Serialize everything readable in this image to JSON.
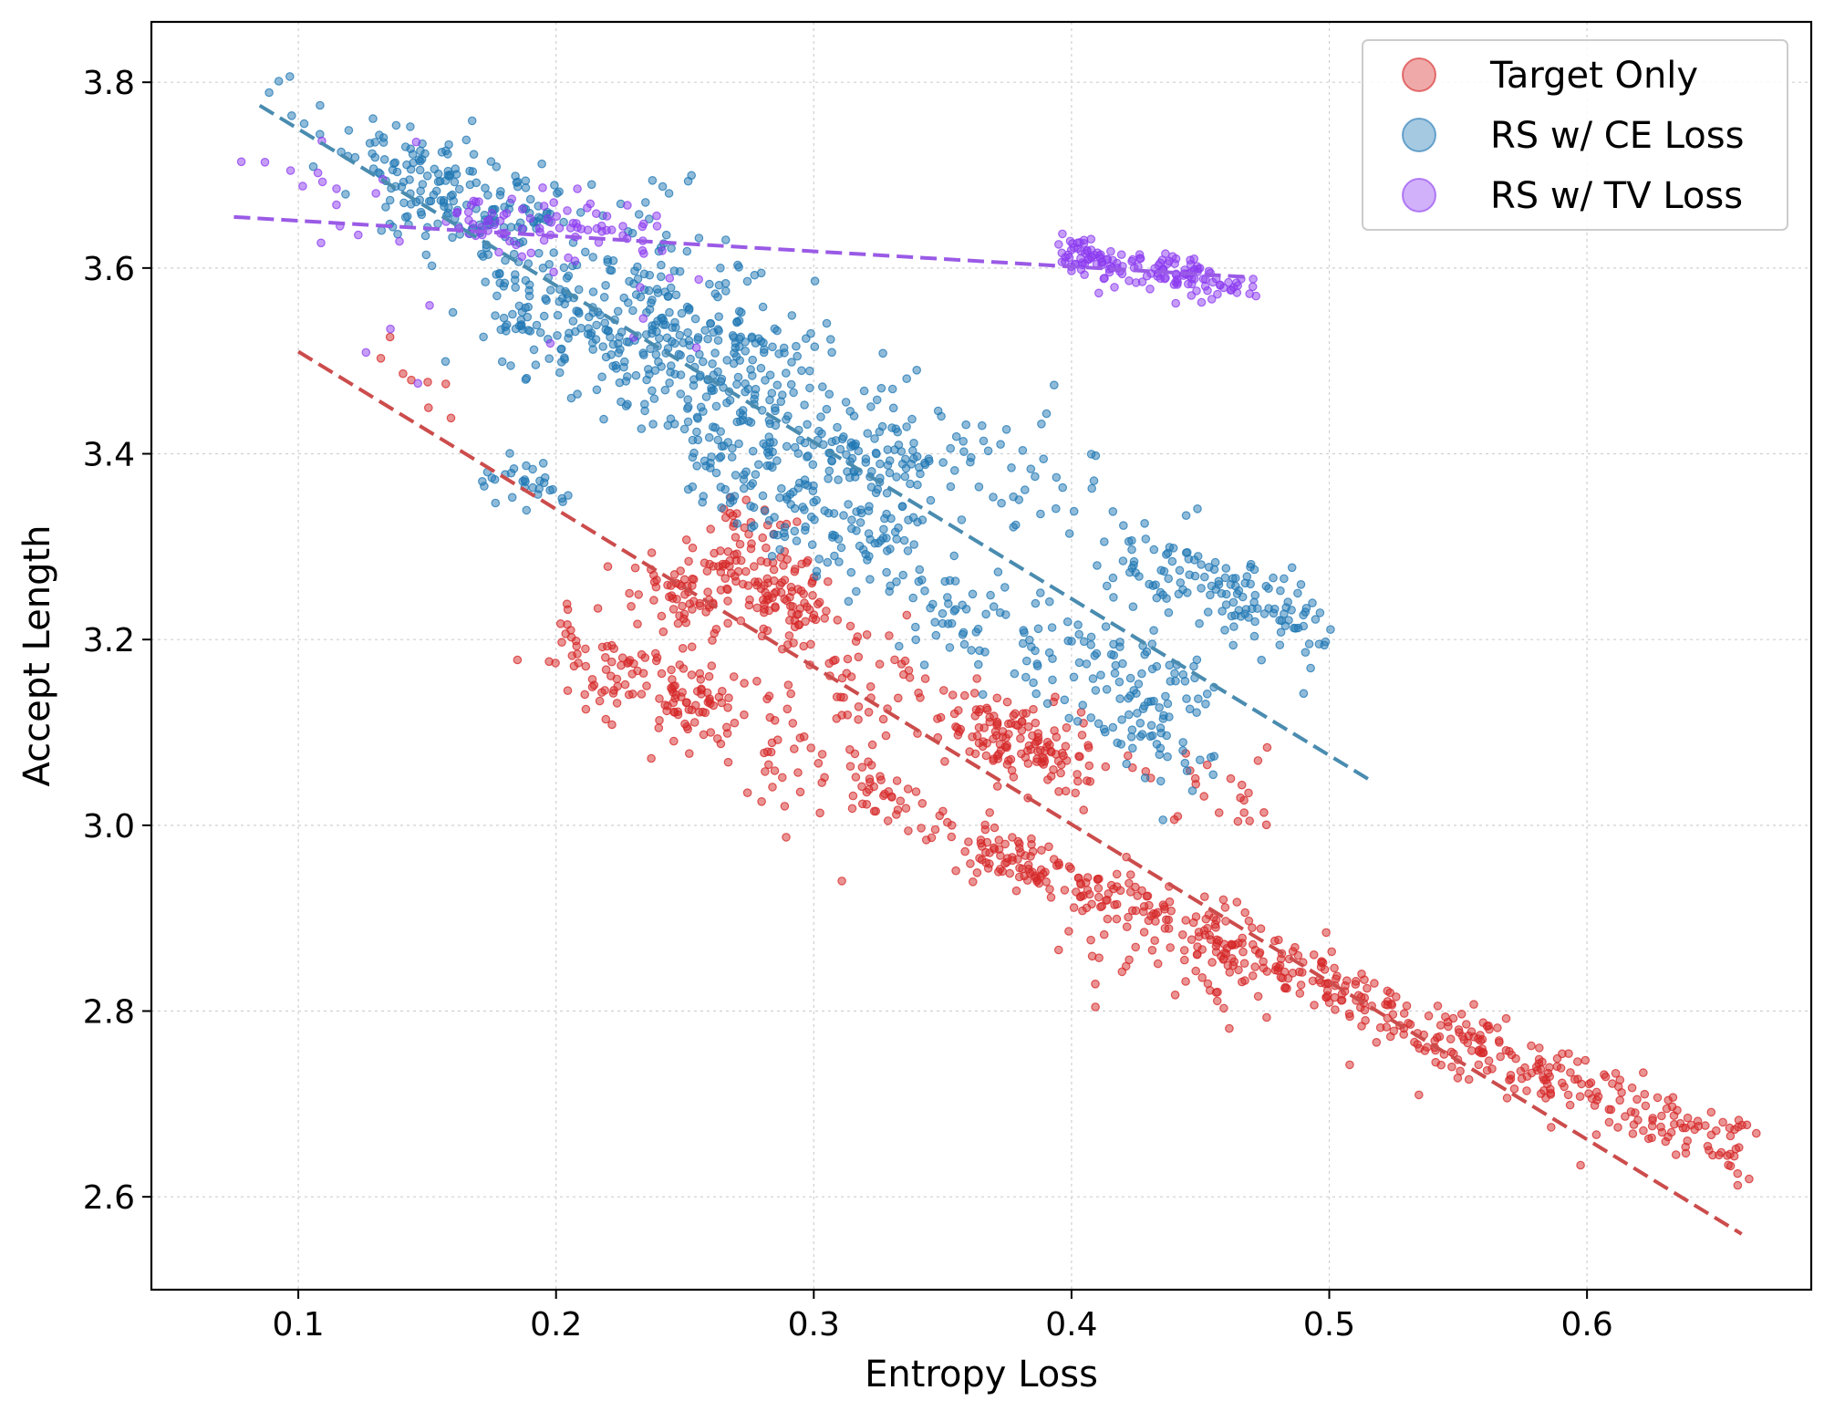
{
  "chart_data": {
    "type": "scatter",
    "title": "",
    "xlabel": "Entropy Loss",
    "ylabel": "Accept Length",
    "xlim": [
      0.043,
      0.687
    ],
    "ylim": [
      2.5,
      3.865
    ],
    "xticks": [
      "0.1",
      "0.2",
      "0.3",
      "0.4",
      "0.5",
      "0.6"
    ],
    "yticks": [
      "2.6",
      "2.8",
      "3.0",
      "3.2",
      "3.4",
      "3.6",
      "3.8"
    ],
    "grid": true,
    "legend_position": "top-right",
    "series": [
      {
        "name": "Target Only",
        "color": "#d62728",
        "trend_line": {
          "x": [
            0.1,
            0.66
          ],
          "y": [
            3.51,
            2.56
          ]
        },
        "clusters": [
          {
            "x": [
              0.52,
              0.66
            ],
            "y": [
              2.8,
              2.65
            ],
            "n": 230,
            "spread": 0.018
          },
          {
            "x": [
              0.44,
              0.52
            ],
            "y": [
              2.9,
              2.8
            ],
            "n": 140,
            "spread": 0.018
          },
          {
            "x": [
              0.36,
              0.44
            ],
            "y": [
              2.98,
              2.9
            ],
            "n": 120,
            "spread": 0.018
          },
          {
            "x": [
              0.32,
              0.38
            ],
            "y": [
              3.05,
              2.95
            ],
            "n": 60,
            "spread": 0.015
          },
          {
            "x": [
              0.4,
              0.48
            ],
            "y": [
              2.88,
              2.82
            ],
            "n": 45,
            "spread": 0.025
          },
          {
            "x": [
              0.26,
              0.3
            ],
            "y": [
              3.3,
              3.23
            ],
            "n": 150,
            "spread": 0.03
          },
          {
            "x": [
              0.3,
              0.41
            ],
            "y": [
              3.2,
              3.06
            ],
            "n": 110,
            "spread": 0.03
          },
          {
            "x": [
              0.36,
              0.4
            ],
            "y": [
              3.1,
              3.07
            ],
            "n": 70,
            "spread": 0.02
          },
          {
            "x": [
              0.24,
              0.32
            ],
            "y": [
              3.15,
              3.05
            ],
            "n": 90,
            "spread": 0.04
          },
          {
            "x": [
              0.2,
              0.23
            ],
            "y": [
              3.21,
              3.14
            ],
            "n": 60,
            "spread": 0.025
          },
          {
            "x": [
              0.23,
              0.26
            ],
            "y": [
              3.26,
              3.24
            ],
            "n": 45,
            "spread": 0.015
          },
          {
            "x": [
              0.24,
              0.26
            ],
            "y": [
              3.15,
              3.12
            ],
            "n": 40,
            "spread": 0.02
          },
          {
            "x": [
              0.42,
              0.48
            ],
            "y": [
              3.07,
              3.03
            ],
            "n": 25,
            "spread": 0.02
          },
          {
            "x": [
              0.13,
              0.16
            ],
            "y": [
              3.5,
              3.48
            ],
            "n": 8,
            "spread": 0.02
          }
        ]
      },
      {
        "name": "RS w/ CE Loss",
        "color": "#1f77b4",
        "trend_line": {
          "x": [
            0.085,
            0.515
          ],
          "y": [
            3.775,
            3.05
          ]
        },
        "clusters": [
          {
            "x": [
              0.13,
              0.2
            ],
            "y": [
              3.71,
              3.64
            ],
            "n": 170,
            "spread": 0.03
          },
          {
            "x": [
              0.17,
              0.29
            ],
            "y": [
              3.58,
              3.45
            ],
            "n": 300,
            "spread": 0.04
          },
          {
            "x": [
              0.22,
              0.3
            ],
            "y": [
              3.6,
              3.5
            ],
            "n": 120,
            "spread": 0.04
          },
          {
            "x": [
              0.25,
              0.34
            ],
            "y": [
              3.4,
              3.28
            ],
            "n": 150,
            "spread": 0.03
          },
          {
            "x": [
              0.29,
              0.34
            ],
            "y": [
              3.42,
              3.37
            ],
            "n": 80,
            "spread": 0.02
          },
          {
            "x": [
              0.33,
              0.45
            ],
            "y": [
              3.24,
              3.14
            ],
            "n": 140,
            "spread": 0.03
          },
          {
            "x": [
              0.32,
              0.41
            ],
            "y": [
              3.45,
              3.34
            ],
            "n": 70,
            "spread": 0.04
          },
          {
            "x": [
              0.42,
              0.49
            ],
            "y": [
              3.29,
              3.21
            ],
            "n": 110,
            "spread": 0.025
          },
          {
            "x": [
              0.46,
              0.5
            ],
            "y": [
              3.25,
              3.21
            ],
            "n": 30,
            "spread": 0.02
          },
          {
            "x": [
              0.17,
              0.2
            ],
            "y": [
              3.38,
              3.36
            ],
            "n": 30,
            "spread": 0.015
          },
          {
            "x": [
              0.41,
              0.45
            ],
            "y": [
              3.12,
              3.06
            ],
            "n": 40,
            "spread": 0.025
          },
          {
            "x": [
              0.09,
              0.13
            ],
            "y": [
              3.78,
              3.7
            ],
            "n": 12,
            "spread": 0.03
          },
          {
            "x": [
              0.22,
              0.25
            ],
            "y": [
              3.7,
              3.66
            ],
            "n": 12,
            "spread": 0.02
          }
        ]
      },
      {
        "name": "RS w/ TV Loss",
        "color": "#8c3bf0",
        "trend_line": {
          "x": [
            0.075,
            0.47
          ],
          "y": [
            3.655,
            3.59
          ]
        },
        "clusters": [
          {
            "x": [
              0.395,
              0.47
            ],
            "y": [
              3.615,
              3.58
            ],
            "n": 150,
            "spread": 0.01
          },
          {
            "x": [
              0.16,
              0.24
            ],
            "y": [
              3.66,
              3.63
            ],
            "n": 80,
            "spread": 0.015
          },
          {
            "x": [
              0.08,
              0.13
            ],
            "y": [
              3.72,
              3.66
            ],
            "n": 12,
            "spread": 0.025
          },
          {
            "x": [
              0.12,
              0.25
            ],
            "y": [
              3.6,
              3.55
            ],
            "n": 15,
            "spread": 0.06
          }
        ]
      }
    ]
  }
}
